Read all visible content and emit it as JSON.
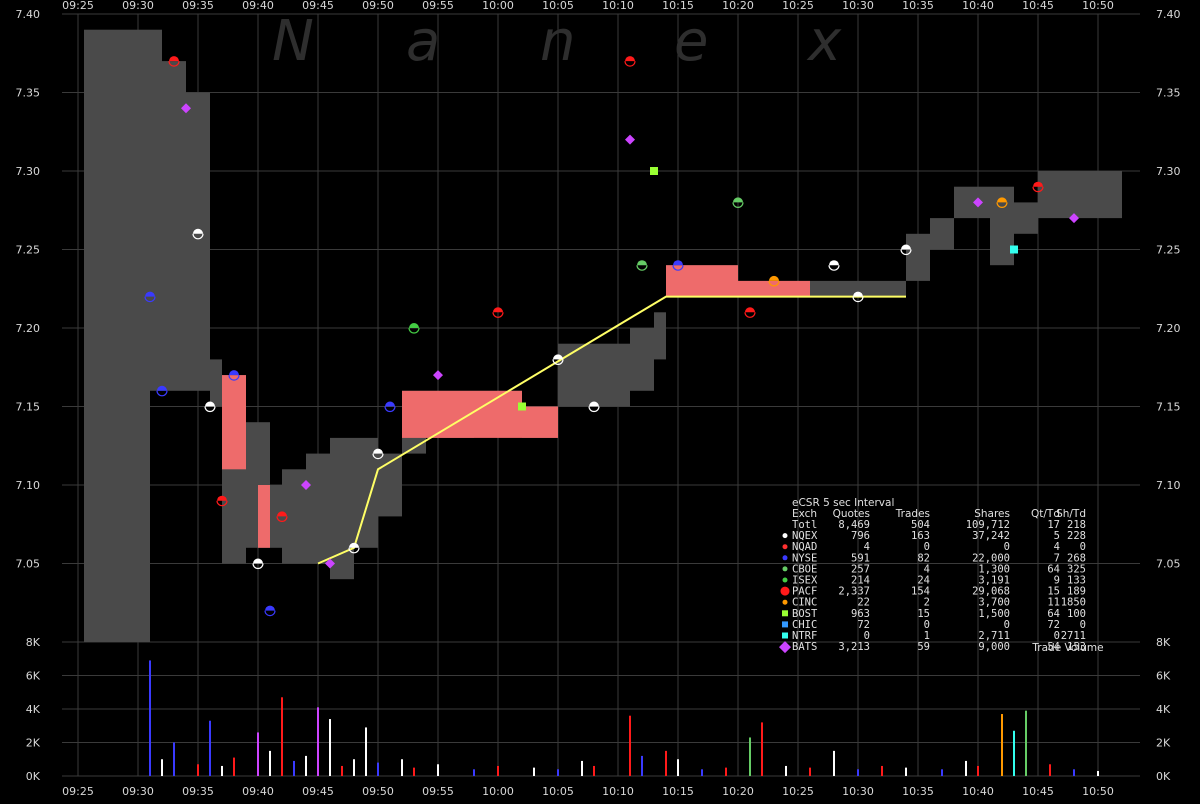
{
  "watermark": [
    "N",
    "a",
    "n",
    "e",
    "x"
  ],
  "colors": {
    "background": "#000000",
    "grid": "#3a3a3a",
    "nbbo": "#4a4a4a",
    "pacf_nbbo": "#ee6b6b",
    "trade_line": "#ffff66",
    "volume_text": "#d8d8d8"
  },
  "stats_table": {
    "title": "eCSR 5 sec Interval",
    "columns": [
      "Exch",
      "Quotes",
      "Trades",
      "Shares",
      "Qt/Td",
      "Sh/Td"
    ],
    "rows": [
      {
        "exch": "Totl",
        "quotes": "8,469",
        "trades": "504",
        "shares": "109,712",
        "qt_td": "17",
        "sh_td": "218",
        "color": "",
        "marker": "none"
      },
      {
        "exch": "NQEX",
        "quotes": "796",
        "trades": "163",
        "shares": "37,242",
        "qt_td": "5",
        "sh_td": "228",
        "color": "#ffffff",
        "marker": "dot"
      },
      {
        "exch": "NQAD",
        "quotes": "4",
        "trades": "0",
        "shares": "0",
        "qt_td": "4",
        "sh_td": "0",
        "color": "#ff3030",
        "marker": "dot"
      },
      {
        "exch": "NYSE",
        "quotes": "591",
        "trades": "82",
        "shares": "22,000",
        "qt_td": "7",
        "sh_td": "268",
        "color": "#3a3aff",
        "marker": "dot"
      },
      {
        "exch": "CBOE",
        "quotes": "257",
        "trades": "4",
        "shares": "1,300",
        "qt_td": "64",
        "sh_td": "325",
        "color": "#66cc66",
        "marker": "dot"
      },
      {
        "exch": "ISEX",
        "quotes": "214",
        "trades": "24",
        "shares": "3,191",
        "qt_td": "9",
        "sh_td": "133",
        "color": "#44cc44",
        "marker": "dot"
      },
      {
        "exch": "PACF",
        "quotes": "2,337",
        "trades": "154",
        "shares": "29,068",
        "qt_td": "15",
        "sh_td": "189",
        "color": "#ff1a1a",
        "marker": "bigdot"
      },
      {
        "exch": "CINC",
        "quotes": "22",
        "trades": "2",
        "shares": "3,700",
        "qt_td": "11",
        "sh_td": "1850",
        "color": "#ff9900",
        "marker": "dot"
      },
      {
        "exch": "BOST",
        "quotes": "963",
        "trades": "15",
        "shares": "1,500",
        "qt_td": "64",
        "sh_td": "100",
        "color": "#99ff33",
        "marker": "square"
      },
      {
        "exch": "CHIC",
        "quotes": "72",
        "trades": "0",
        "shares": "0",
        "qt_td": "72",
        "sh_td": "0",
        "color": "#3399ff",
        "marker": "square"
      },
      {
        "exch": "NTRF",
        "quotes": "0",
        "trades": "1",
        "shares": "2,711",
        "qt_td": "0",
        "sh_td": "2711",
        "color": "#33ffee",
        "marker": "square"
      },
      {
        "exch": "BATS",
        "quotes": "3,213",
        "trades": "59",
        "shares": "9,000",
        "qt_td": "54",
        "sh_td": "153",
        "color": "#cc44ff",
        "marker": "diamond"
      }
    ]
  },
  "chart_data": [
    {
      "type": "line",
      "title": "",
      "xlabel": "",
      "ylabel": "",
      "x_ticks": [
        "09:25",
        "09:30",
        "09:35",
        "09:40",
        "09:45",
        "09:50",
        "09:55",
        "10:00",
        "10:05",
        "10:10",
        "10:15",
        "10:20",
        "10:25",
        "10:30",
        "10:35",
        "10:40",
        "10:45",
        "10:50"
      ],
      "y_ticks": [
        "7.05",
        "7.10",
        "7.15",
        "7.20",
        "7.25",
        "7.30",
        "7.35",
        "7.40"
      ],
      "ylim": [
        7.0,
        7.4
      ],
      "xlim_minutes": [
        0,
        90
      ],
      "x_start": "09:25",
      "grid": true,
      "nbbo_bands": [
        {
          "x0": "09:25:30",
          "x1": "09:28",
          "low": 7.0,
          "high": 7.39
        },
        {
          "x0": "09:28",
          "x1": "09:31",
          "low": 7.0,
          "high": 7.39
        },
        {
          "x0": "09:31",
          "x1": "09:32",
          "low": 7.16,
          "high": 7.39
        },
        {
          "x0": "09:32",
          "x1": "09:34",
          "low": 7.16,
          "high": 7.37
        },
        {
          "x0": "09:34",
          "x1": "09:36",
          "low": 7.16,
          "high": 7.35
        },
        {
          "x0": "09:36",
          "x1": "09:37",
          "low": 7.15,
          "high": 7.18
        },
        {
          "x0": "09:37",
          "x1": "09:39",
          "low": 7.05,
          "high": 7.17
        },
        {
          "x0": "09:39",
          "x1": "09:41",
          "low": 7.06,
          "high": 7.14
        },
        {
          "x0": "09:41",
          "x1": "09:42",
          "low": 7.06,
          "high": 7.1
        },
        {
          "x0": "09:42",
          "x1": "09:44",
          "low": 7.05,
          "high": 7.11
        },
        {
          "x0": "09:44",
          "x1": "09:46",
          "low": 7.05,
          "high": 7.12
        },
        {
          "x0": "09:46",
          "x1": "09:48",
          "low": 7.04,
          "high": 7.13
        },
        {
          "x0": "09:48",
          "x1": "09:50",
          "low": 7.06,
          "high": 7.13
        },
        {
          "x0": "09:50",
          "x1": "09:52",
          "low": 7.08,
          "high": 7.12
        },
        {
          "x0": "09:52",
          "x1": "09:54",
          "low": 7.12,
          "high": 7.16
        },
        {
          "x0": "09:54",
          "x1": "09:58",
          "low": 7.13,
          "high": 7.16
        },
        {
          "x0": "09:58",
          "x1": "10:02",
          "low": 7.14,
          "high": 7.16
        },
        {
          "x0": "10:02",
          "x1": "10:05",
          "low": 7.13,
          "high": 7.15
        },
        {
          "x0": "10:05",
          "x1": "10:07",
          "low": 7.15,
          "high": 7.19
        },
        {
          "x0": "10:07",
          "x1": "10:11",
          "low": 7.15,
          "high": 7.19
        },
        {
          "x0": "10:11",
          "x1": "10:13",
          "low": 7.16,
          "high": 7.2
        },
        {
          "x0": "10:13",
          "x1": "10:14",
          "low": 7.18,
          "high": 7.21
        },
        {
          "x0": "10:14",
          "x1": "10:20",
          "low": 7.22,
          "high": 7.24
        },
        {
          "x0": "10:20",
          "x1": "10:30",
          "low": 7.22,
          "high": 7.23
        },
        {
          "x0": "10:30",
          "x1": "10:34",
          "low": 7.22,
          "high": 7.23
        },
        {
          "x0": "10:34",
          "x1": "10:36",
          "low": 7.23,
          "high": 7.26
        },
        {
          "x0": "10:36",
          "x1": "10:38",
          "low": 7.25,
          "high": 7.27
        },
        {
          "x0": "10:38",
          "x1": "10:41",
          "low": 7.27,
          "high": 7.29
        },
        {
          "x0": "10:41",
          "x1": "10:43",
          "low": 7.24,
          "high": 7.29
        },
        {
          "x0": "10:43",
          "x1": "10:45",
          "low": 7.26,
          "high": 7.28
        },
        {
          "x0": "10:45",
          "x1": "10:48",
          "low": 7.27,
          "high": 7.3
        },
        {
          "x0": "10:48",
          "x1": "10:52",
          "low": 7.27,
          "high": 7.3
        }
      ],
      "pacf_bands": [
        {
          "x0": "09:37",
          "x1": "09:39",
          "low": 7.11,
          "high": 7.17
        },
        {
          "x0": "09:40",
          "x1": "09:41",
          "low": 7.06,
          "high": 7.1
        },
        {
          "x0": "09:52",
          "x1": "10:02",
          "low": 7.13,
          "high": 7.16
        },
        {
          "x0": "10:02",
          "x1": "10:05",
          "low": 7.13,
          "high": 7.15
        },
        {
          "x0": "10:14",
          "x1": "10:20",
          "low": 7.22,
          "high": 7.24
        },
        {
          "x0": "10:20",
          "x1": "10:26",
          "low": 7.22,
          "high": 7.23
        }
      ],
      "trade_series": [
        {
          "t": "09:45",
          "price": 7.05
        },
        {
          "t": "09:48",
          "price": 7.06
        },
        {
          "t": "09:50",
          "price": 7.11
        },
        {
          "t": "10:14",
          "price": 7.22
        },
        {
          "t": "10:20",
          "price": 7.22
        },
        {
          "t": "10:25",
          "price": 7.22
        },
        {
          "t": "10:30",
          "price": 7.22
        },
        {
          "t": "10:34",
          "price": 7.22
        }
      ],
      "quote_markers": [
        {
          "t": "09:31",
          "price": 7.22,
          "exch": "NYSE"
        },
        {
          "t": "09:32",
          "price": 7.16,
          "exch": "NYSE"
        },
        {
          "t": "09:33",
          "price": 7.37,
          "exch": "PACF"
        },
        {
          "t": "09:34",
          "price": 7.34,
          "exch": "BATS"
        },
        {
          "t": "09:35",
          "price": 7.26,
          "exch": "NQEX"
        },
        {
          "t": "09:36",
          "price": 7.15,
          "exch": "NQEX"
        },
        {
          "t": "09:37",
          "price": 7.09,
          "exch": "PACF"
        },
        {
          "t": "09:38",
          "price": 7.17,
          "exch": "NYSE"
        },
        {
          "t": "09:40",
          "price": 7.05,
          "exch": "NQEX"
        },
        {
          "t": "09:41",
          "price": 7.02,
          "exch": "NYSE"
        },
        {
          "t": "09:42",
          "price": 7.08,
          "exch": "PACF"
        },
        {
          "t": "09:44",
          "price": 7.1,
          "exch": "BATS"
        },
        {
          "t": "09:46",
          "price": 7.05,
          "exch": "BATS"
        },
        {
          "t": "09:48",
          "price": 7.06,
          "exch": "NQEX"
        },
        {
          "t": "09:50",
          "price": 7.12,
          "exch": "NQEX"
        },
        {
          "t": "09:51",
          "price": 7.15,
          "exch": "NYSE"
        },
        {
          "t": "09:53",
          "price": 7.2,
          "exch": "ISEX"
        },
        {
          "t": "09:55",
          "price": 7.17,
          "exch": "BATS"
        },
        {
          "t": "10:00",
          "price": 7.21,
          "exch": "PACF"
        },
        {
          "t": "10:02",
          "price": 7.15,
          "exch": "BOST"
        },
        {
          "t": "10:05",
          "price": 7.18,
          "exch": "NQEX"
        },
        {
          "t": "10:08",
          "price": 7.15,
          "exch": "NQEX"
        },
        {
          "t": "10:11",
          "price": 7.37,
          "exch": "PACF"
        },
        {
          "t": "10:11",
          "price": 7.32,
          "exch": "BATS"
        },
        {
          "t": "10:12",
          "price": 7.24,
          "exch": "CBOE"
        },
        {
          "t": "10:13",
          "price": 7.3,
          "exch": "BOST"
        },
        {
          "t": "10:15",
          "price": 7.24,
          "exch": "NYSE"
        },
        {
          "t": "10:20",
          "price": 7.28,
          "exch": "CBOE"
        },
        {
          "t": "10:21",
          "price": 7.21,
          "exch": "PACF"
        },
        {
          "t": "10:23",
          "price": 7.23,
          "exch": "CINC"
        },
        {
          "t": "10:28",
          "price": 7.24,
          "exch": "NQEX"
        },
        {
          "t": "10:30",
          "price": 7.22,
          "exch": "NQEX"
        },
        {
          "t": "10:34",
          "price": 7.25,
          "exch": "NQEX"
        },
        {
          "t": "10:40",
          "price": 7.28,
          "exch": "BATS"
        },
        {
          "t": "10:42",
          "price": 7.28,
          "exch": "CINC"
        },
        {
          "t": "10:43",
          "price": 7.25,
          "exch": "NTRF"
        },
        {
          "t": "10:45",
          "price": 7.29,
          "exch": "PACF"
        },
        {
          "t": "10:48",
          "price": 7.27,
          "exch": "BATS"
        }
      ]
    },
    {
      "type": "bar",
      "title": "Trade Volume",
      "y_ticks": [
        "0K",
        "2K",
        "4K",
        "6K",
        "8K"
      ],
      "ylim": [
        0,
        8000
      ],
      "bars": [
        {
          "t": "09:31",
          "v": 6900,
          "exch": "NYSE"
        },
        {
          "t": "09:32",
          "v": 1000,
          "exch": "NQEX"
        },
        {
          "t": "09:33",
          "v": 2000,
          "exch": "NYSE"
        },
        {
          "t": "09:35",
          "v": 700,
          "exch": "PACF"
        },
        {
          "t": "09:36",
          "v": 3300,
          "exch": "NYSE"
        },
        {
          "t": "09:37",
          "v": 600,
          "exch": "NQEX"
        },
        {
          "t": "09:38",
          "v": 1100,
          "exch": "PACF"
        },
        {
          "t": "09:40",
          "v": 2600,
          "exch": "BATS"
        },
        {
          "t": "09:41",
          "v": 1500,
          "exch": "NQEX"
        },
        {
          "t": "09:42",
          "v": 4700,
          "exch": "PACF"
        },
        {
          "t": "09:43",
          "v": 900,
          "exch": "NYSE"
        },
        {
          "t": "09:44",
          "v": 1200,
          "exch": "NQEX"
        },
        {
          "t": "09:45",
          "v": 4100,
          "exch": "BATS"
        },
        {
          "t": "09:46",
          "v": 3400,
          "exch": "NQEX"
        },
        {
          "t": "09:47",
          "v": 600,
          "exch": "PACF"
        },
        {
          "t": "09:48",
          "v": 1000,
          "exch": "NQEX"
        },
        {
          "t": "09:49",
          "v": 2900,
          "exch": "NQEX"
        },
        {
          "t": "09:50",
          "v": 800,
          "exch": "NYSE"
        },
        {
          "t": "09:52",
          "v": 1000,
          "exch": "NQEX"
        },
        {
          "t": "09:53",
          "v": 500,
          "exch": "PACF"
        },
        {
          "t": "09:55",
          "v": 700,
          "exch": "NQEX"
        },
        {
          "t": "09:58",
          "v": 400,
          "exch": "NYSE"
        },
        {
          "t": "10:00",
          "v": 600,
          "exch": "PACF"
        },
        {
          "t": "10:03",
          "v": 500,
          "exch": "NQEX"
        },
        {
          "t": "10:05",
          "v": 400,
          "exch": "NYSE"
        },
        {
          "t": "10:07",
          "v": 900,
          "exch": "NQEX"
        },
        {
          "t": "10:08",
          "v": 600,
          "exch": "PACF"
        },
        {
          "t": "10:11",
          "v": 3600,
          "exch": "PACF"
        },
        {
          "t": "10:12",
          "v": 1200,
          "exch": "NYSE"
        },
        {
          "t": "10:14",
          "v": 1500,
          "exch": "PACF"
        },
        {
          "t": "10:15",
          "v": 1000,
          "exch": "NQEX"
        },
        {
          "t": "10:17",
          "v": 400,
          "exch": "NYSE"
        },
        {
          "t": "10:19",
          "v": 500,
          "exch": "PACF"
        },
        {
          "t": "10:21",
          "v": 2300,
          "exch": "CBOE"
        },
        {
          "t": "10:22",
          "v": 3200,
          "exch": "PACF"
        },
        {
          "t": "10:24",
          "v": 600,
          "exch": "NQEX"
        },
        {
          "t": "10:26",
          "v": 500,
          "exch": "PACF"
        },
        {
          "t": "10:28",
          "v": 1500,
          "exch": "NQEX"
        },
        {
          "t": "10:30",
          "v": 400,
          "exch": "NYSE"
        },
        {
          "t": "10:32",
          "v": 600,
          "exch": "PACF"
        },
        {
          "t": "10:34",
          "v": 500,
          "exch": "NQEX"
        },
        {
          "t": "10:37",
          "v": 400,
          "exch": "NYSE"
        },
        {
          "t": "10:39",
          "v": 900,
          "exch": "NQEX"
        },
        {
          "t": "10:40",
          "v": 600,
          "exch": "PACF"
        },
        {
          "t": "10:42",
          "v": 3700,
          "exch": "CINC"
        },
        {
          "t": "10:43",
          "v": 2700,
          "exch": "NTRF"
        },
        {
          "t": "10:44",
          "v": 3900,
          "exch": "CBOE"
        },
        {
          "t": "10:46",
          "v": 700,
          "exch": "PACF"
        },
        {
          "t": "10:48",
          "v": 400,
          "exch": "NYSE"
        },
        {
          "t": "10:50",
          "v": 300,
          "exch": "NQEX"
        }
      ]
    }
  ]
}
